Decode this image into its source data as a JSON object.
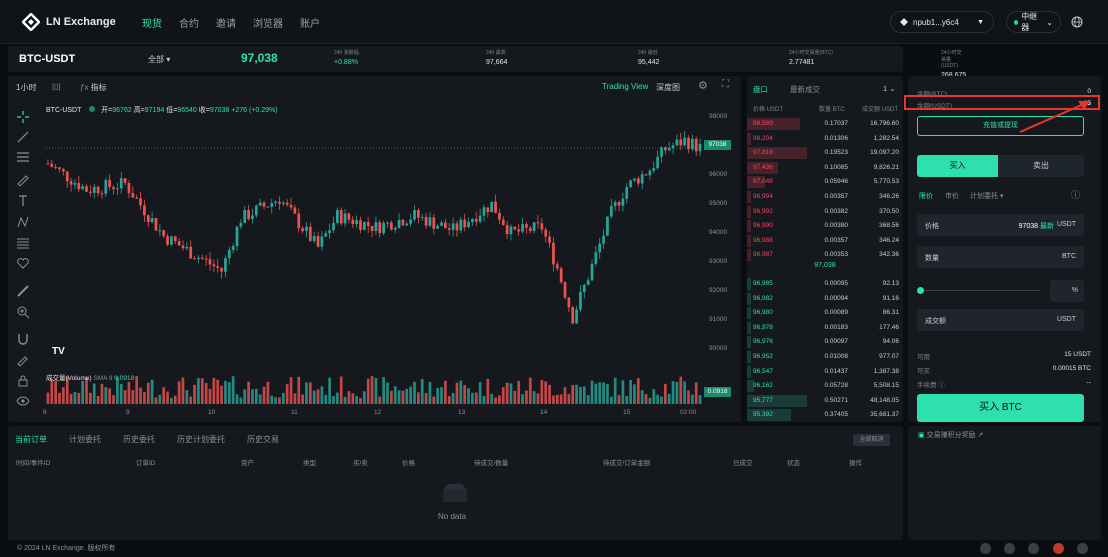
{
  "brand": {
    "name": "LN Exchange"
  },
  "nav": {
    "items": [
      {
        "label": "现货",
        "active": true
      },
      {
        "label": "合约"
      },
      {
        "label": "邀请"
      },
      {
        "label": "浏览器"
      },
      {
        "label": "账户"
      }
    ]
  },
  "wallet": {
    "label": "npub1...y6c4"
  },
  "relay": {
    "label": "中继器"
  },
  "ticker": {
    "pair": "BTC-USDT",
    "filter": "全部",
    "price": "97,038",
    "stats": [
      {
        "label": "24h 涨跌幅",
        "value": "+0.88%",
        "color": "#2ee0b0"
      },
      {
        "label": "24h 最高",
        "value": "97,664"
      },
      {
        "label": "24h 最低",
        "value": "95,442"
      },
      {
        "label": "24小时交易量(BTC)",
        "value": "2.77481"
      },
      {
        "label": "24小时交易量(USDT)",
        "value": "268,675"
      }
    ]
  },
  "chart": {
    "interval": "1小时",
    "indicators": "指标",
    "view": "Trading View",
    "depth": "深度图",
    "legend_pair": "BTC-USDT",
    "ohlc": {
      "o_label": "开=",
      "o": "96762",
      "h_label": "高=",
      "h": "97194",
      "l_label": "低=",
      "l": "96540",
      "c_label": "收=",
      "c": "97038",
      "chg": "+276 (+0.29%)"
    },
    "yticks": [
      "98000",
      "97000",
      "96000",
      "95000",
      "94000",
      "93000",
      "92000",
      "91000",
      "90000"
    ],
    "last_price": "97038",
    "xticks": [
      "8",
      "9",
      "10",
      "11",
      "12",
      "13",
      "14",
      "15",
      "02:00"
    ],
    "volume_label": "成交量(Volume)",
    "sma_label": "SMA 9",
    "sma_value": "0.0918",
    "vol_tag": "0.0918"
  },
  "book": {
    "tab_book": "盘口",
    "tab_trades": "最新成交",
    "precision": "1",
    "head": {
      "price": "价格",
      "price_u": "USDT",
      "qty": "数量",
      "qty_u": "BTC",
      "total": "成交额",
      "total_u": "USDT"
    },
    "asks": [
      [
        "98,589",
        "0.17037",
        "16,796.60"
      ],
      [
        "98,204",
        "0.01306",
        "1,282.54"
      ],
      [
        "97,819",
        "0.19523",
        "19,097.20"
      ],
      [
        "97,436",
        "0.10085",
        "9,826.21"
      ],
      [
        "97,049",
        "0.05946",
        "5,770.53"
      ],
      [
        "96,994",
        "0.00357",
        "346.26"
      ],
      [
        "96,992",
        "0.00382",
        "370.50"
      ],
      [
        "96,990",
        "0.00380",
        "368.56"
      ],
      [
        "96,988",
        "0.00357",
        "346.24"
      ],
      [
        "96,987",
        "0.00353",
        "342.36"
      ]
    ],
    "mid": "97,038",
    "bids": [
      [
        "96,985",
        "0.00095",
        "92.13"
      ],
      [
        "96,982",
        "0.00094",
        "91.16"
      ],
      [
        "96,980",
        "0.00089",
        "86.31"
      ],
      [
        "96,978",
        "0.00183",
        "177.46"
      ],
      [
        "96,976",
        "0.00097",
        "94.06"
      ],
      [
        "96,952",
        "0.01008",
        "977.07"
      ],
      [
        "96,547",
        "0.01437",
        "1,387.38"
      ],
      [
        "96,162",
        "0.05728",
        "5,508.15"
      ],
      [
        "95,777",
        "0.50271",
        "48,148.05"
      ],
      [
        "95,392",
        "0.37405",
        "35,681.37"
      ]
    ]
  },
  "order_form": {
    "bal_btc_label": "余额(BTC)",
    "bal_btc": "0",
    "bal_usdt_label": "余额(USDT)",
    "bal_usdt": "15",
    "deposit": "充值或提现",
    "buy_tab": "买入",
    "sell_tab": "卖出",
    "types": [
      "限价",
      "市价",
      "计划委托"
    ],
    "price_label": "价格",
    "price_value": "97038",
    "latest": "最新",
    "price_unit": "USDT",
    "qty_label": "数量",
    "qty_unit": "BTC",
    "pct_unit": "%",
    "amount_label": "成交额",
    "amount_unit": "USDT",
    "avail_label": "可用",
    "avail": "15 USDT",
    "canbuy_label": "可买",
    "canbuy": "0.00015 BTC",
    "fee_label": "手续费",
    "fee": "--",
    "buy_btn": "买入 BTC",
    "rules": "交易赚积分奖励"
  },
  "orders": {
    "tabs": [
      "当前订单",
      "计划委托",
      "历史委托",
      "历史计划委托",
      "历史交易"
    ],
    "cancel_all": "全部取消",
    "cols": [
      "时间/事件ID",
      "订单ID",
      "资产",
      "类型",
      "买/卖",
      "价格",
      "待成交/数量",
      "待成交/订单金额",
      "已成交",
      "状态",
      "操作"
    ],
    "empty": "No data"
  },
  "footer": {
    "copy": "© 2024 LN Exchange. 版权所有"
  }
}
